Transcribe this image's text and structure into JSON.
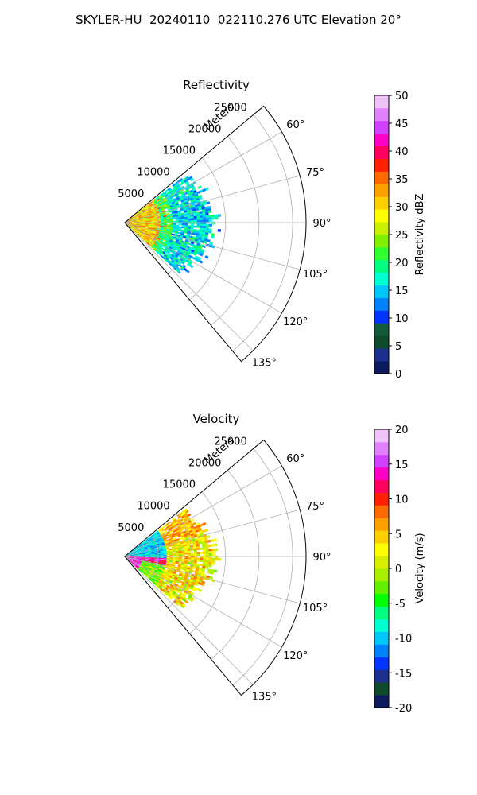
{
  "figure": {
    "title": "SKYLER-HU  20240110  022110.276 UTC Elevation 20°"
  },
  "chart_data": [
    {
      "type": "heatmap",
      "projection": "polar-sector",
      "title": "Reflectivity",
      "radial_label": "Meters",
      "radial_ticks": [
        5000,
        10000,
        15000,
        20000,
        25000
      ],
      "radial_max": 27000,
      "angle_ticks": [
        "60°",
        "75°",
        "90°",
        "105°",
        "120°",
        "135°"
      ],
      "angle_tick_values": [
        60,
        75,
        90,
        105,
        120,
        135
      ],
      "angle_range_deg": [
        50,
        140
      ],
      "grid": true,
      "colorbar": {
        "label": "Reflectivity dBZ",
        "min": 0,
        "max": 50,
        "ticks": [
          0,
          5,
          10,
          15,
          20,
          25,
          30,
          35,
          40,
          45,
          50
        ],
        "colors": [
          "#0d1a5e",
          "#1c2f8f",
          "#0f4a2a",
          "#135c3a",
          "#0034ff",
          "#0082ff",
          "#00c8ff",
          "#00ffd0",
          "#00ff80",
          "#30ff30",
          "#80f000",
          "#c8f000",
          "#ffff00",
          "#ffd000",
          "#ffa000",
          "#ff6a00",
          "#ff2000",
          "#ff0060",
          "#ff00c8",
          "#d040ff",
          "#e080ff",
          "#f0c0f8"
        ]
      },
      "data_summary": "Echoes extend to roughly 12000-14000 m; values mostly 15-25 dBZ, with 25-38 dBZ within about 5000 m of the radar."
    },
    {
      "type": "heatmap",
      "projection": "polar-sector",
      "title": "Velocity",
      "radial_label": "Meters",
      "radial_ticks": [
        5000,
        10000,
        15000,
        20000,
        25000
      ],
      "radial_max": 27000,
      "angle_ticks": [
        "60°",
        "75°",
        "90°",
        "105°",
        "120°",
        "135°"
      ],
      "angle_tick_values": [
        60,
        75,
        90,
        105,
        120,
        135
      ],
      "angle_range_deg": [
        50,
        140
      ],
      "grid": true,
      "colorbar": {
        "label": "Velocity (m/s)",
        "min": -20,
        "max": 20,
        "ticks": [
          -20,
          -15,
          -10,
          -5,
          0,
          5,
          10,
          15,
          20
        ],
        "colors": [
          "#0d1a5e",
          "#0f4a2a",
          "#1c2f8f",
          "#0034ff",
          "#0082ff",
          "#00c8ff",
          "#00ffd0",
          "#00ff80",
          "#00ff00",
          "#60f000",
          "#a8f000",
          "#d8f000",
          "#ffff00",
          "#ffd000",
          "#ffa000",
          "#ff6a00",
          "#ff2000",
          "#ff0060",
          "#ff00c8",
          "#d040ff",
          "#e080ff",
          "#f0c0f8"
        ]
      },
      "data_summary": "Outer echoes 0 to +10 m/s (yellow to orange); inbound -8 to -12 m/s band near the radar on the upper side; core of +10 to +18 m/s near 95-100°."
    }
  ]
}
